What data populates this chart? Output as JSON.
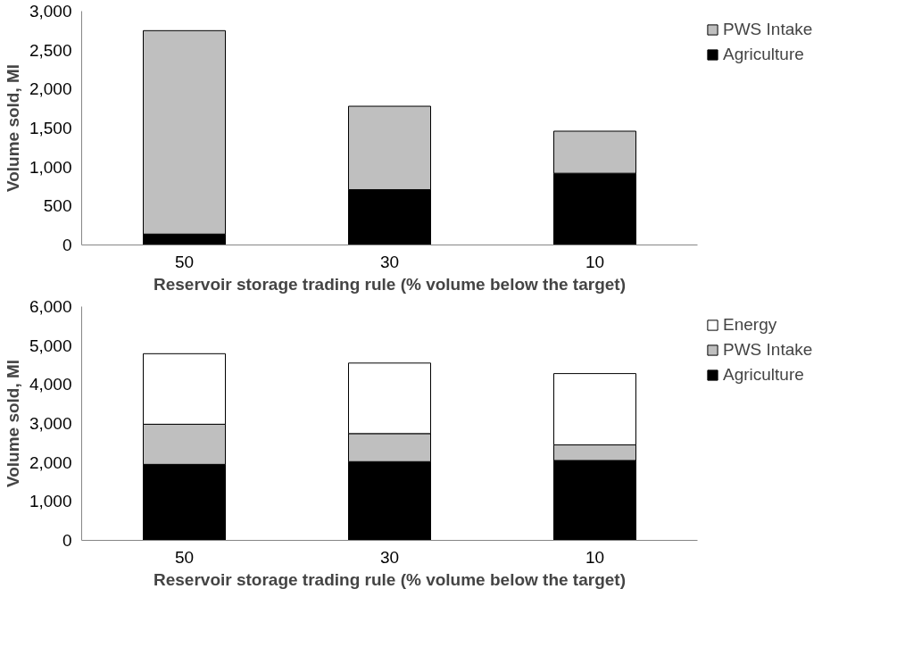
{
  "chart_data": [
    {
      "type": "bar",
      "stacked": true,
      "categories": [
        "50",
        "30",
        "10"
      ],
      "xlabel": "Reservoir storage trading rule (% volume below the target)",
      "ylabel": "Volume sold, Ml",
      "ylim": [
        0,
        3000
      ],
      "yticks": [
        {
          "value": 0,
          "label": "0"
        },
        {
          "value": 500,
          "label": "500"
        },
        {
          "value": 1000,
          "label": "1,000"
        },
        {
          "value": 1500,
          "label": "1,500"
        },
        {
          "value": 2000,
          "label": "2,000"
        },
        {
          "value": 2500,
          "label": "2,500"
        },
        {
          "value": 3000,
          "label": "3,000"
        }
      ],
      "grid": false,
      "legend": "right",
      "series": [
        {
          "name": "Agriculture",
          "color": "#000000",
          "values": [
            140,
            710,
            920
          ]
        },
        {
          "name": "PWS Intake",
          "color": "#bfbfbf",
          "values": [
            2610,
            1070,
            540
          ]
        }
      ]
    },
    {
      "type": "bar",
      "stacked": true,
      "categories": [
        "50",
        "30",
        "10"
      ],
      "xlabel": "Reservoir storage trading rule (% volume below the target)",
      "ylabel": "Volume sold, Ml",
      "ylim": [
        0,
        6000
      ],
      "yticks": [
        {
          "value": 0,
          "label": "0"
        },
        {
          "value": 1000,
          "label": "1,000"
        },
        {
          "value": 2000,
          "label": "2,000"
        },
        {
          "value": 3000,
          "label": "3,000"
        },
        {
          "value": 4000,
          "label": "4,000"
        },
        {
          "value": 5000,
          "label": "5,000"
        },
        {
          "value": 6000,
          "label": "6,000"
        }
      ],
      "grid": false,
      "legend": "right",
      "series": [
        {
          "name": "Agriculture",
          "color": "#000000",
          "values": [
            1950,
            2020,
            2050
          ]
        },
        {
          "name": "PWS Intake",
          "color": "#bfbfbf",
          "values": [
            1030,
            720,
            400
          ]
        },
        {
          "name": "Energy",
          "color": "#ffffff",
          "values": [
            1810,
            1810,
            1830
          ]
        }
      ]
    }
  ]
}
